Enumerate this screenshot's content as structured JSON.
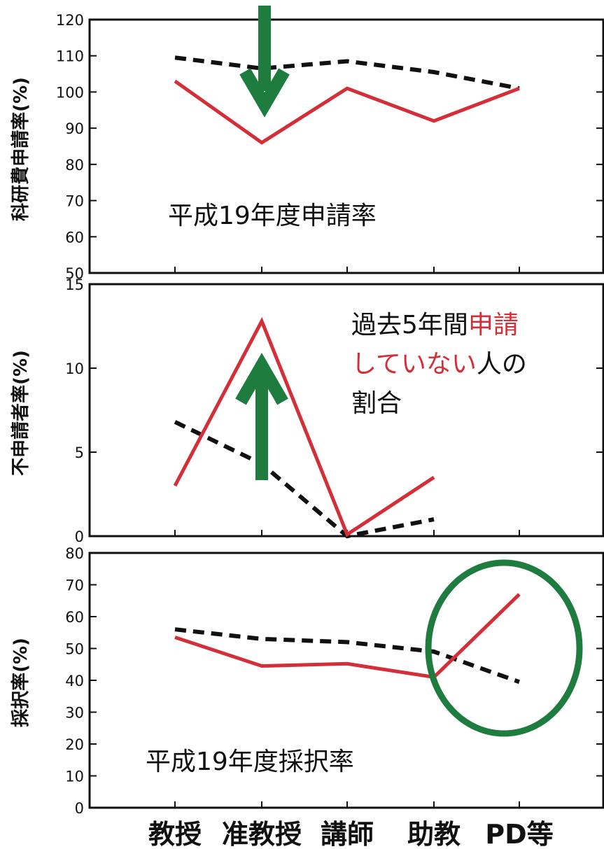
{
  "colors": {
    "red_line": "#d42f38",
    "dashed_line": "#111111",
    "green_mark": "#1e7c3e",
    "frame": "#111111"
  },
  "categories": [
    "教授",
    "准教授",
    "講師",
    "助教",
    "PD等"
  ],
  "chart_data": [
    {
      "type": "line",
      "ylabel": "科研費申請率(%)",
      "ylim": [
        50,
        120
      ],
      "yticks": [
        "50",
        "60",
        "70",
        "80",
        "90",
        "100",
        "110",
        "120"
      ],
      "title": "平成19年度申請率",
      "series": [
        {
          "style": "solid-red",
          "values": [
            103,
            86,
            101,
            92,
            101
          ]
        },
        {
          "style": "dashed-black",
          "values": [
            109.5,
            106.5,
            108.5,
            105.5,
            101
          ]
        }
      ],
      "annotations": [
        {
          "type": "arrow-down",
          "category": "准教授",
          "color": "green"
        }
      ]
    },
    {
      "type": "line",
      "ylabel": "不申請者率(%)",
      "ylim": [
        0,
        15
      ],
      "yticks": [
        "0",
        "5",
        "10",
        "15"
      ],
      "text": {
        "line1_a": "過去5年間",
        "line1_b": "申請",
        "line2_a": "していない",
        "line2_b": "人の",
        "line3": "割合"
      },
      "series": [
        {
          "style": "solid-red",
          "values": [
            3,
            12.8,
            0.1,
            3.5
          ],
          "categories_used": 4
        },
        {
          "style": "dashed-black",
          "values": [
            6.8,
            4.3,
            0,
            1
          ],
          "categories_used": 4
        }
      ],
      "annotations": [
        {
          "type": "arrow-up",
          "category": "准教授",
          "color": "green"
        }
      ]
    },
    {
      "type": "line",
      "ylabel": "採択率(%)",
      "ylim": [
        0,
        80
      ],
      "yticks": [
        "0",
        "10",
        "20",
        "30",
        "40",
        "50",
        "60",
        "70",
        "80"
      ],
      "title": "平成19年度採択率",
      "series": [
        {
          "style": "solid-red",
          "values": [
            53.5,
            44.5,
            45.2,
            41,
            67
          ]
        },
        {
          "style": "dashed-black",
          "values": [
            56,
            53,
            52,
            49,
            39.5
          ]
        }
      ],
      "annotations": [
        {
          "type": "circle",
          "around": [
            "助教",
            "PD等"
          ],
          "color": "green"
        }
      ]
    }
  ]
}
